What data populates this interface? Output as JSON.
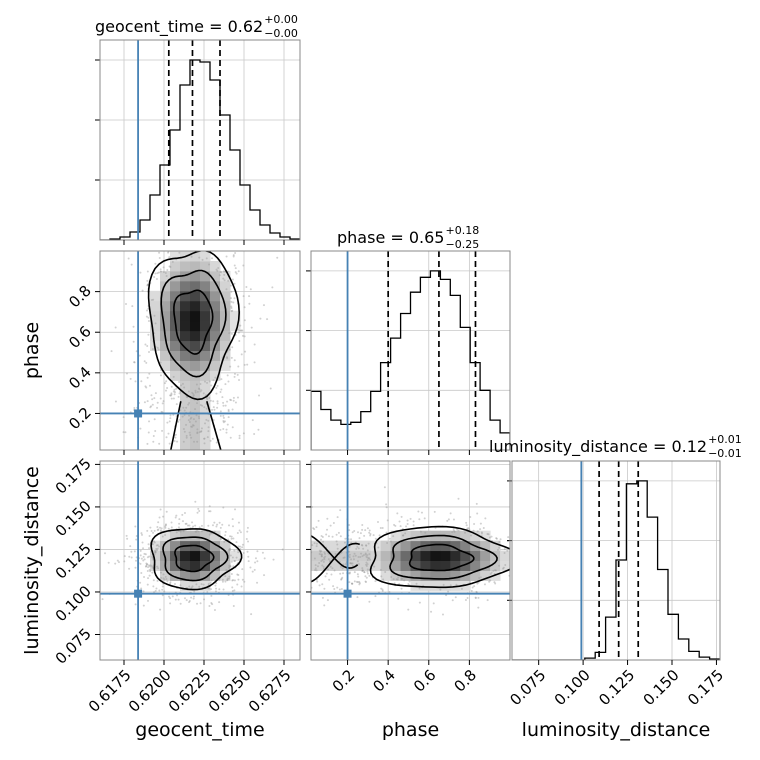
{
  "chart_data": {
    "type": "corner",
    "parameters": [
      "geocent_time",
      "phase",
      "luminosity_distance"
    ],
    "truths": [
      0.61838,
      0.2,
      0.099
    ],
    "truth_color": "#4682b4",
    "ranges": [
      [
        0.616,
        0.6285
      ],
      [
        0.02,
        1.0
      ],
      [
        0.06,
        0.177
      ]
    ],
    "ticks": [
      [
        0.6175,
        0.62,
        0.6225,
        0.625,
        0.6275
      ],
      [
        0.2,
        0.4,
        0.6,
        0.8
      ],
      [
        0.075,
        0.1,
        0.125,
        0.15,
        0.175
      ]
    ],
    "tick_labels": [
      [
        "0.6175",
        "0.6200",
        "0.6225",
        "0.6250",
        "0.6275"
      ],
      [
        "0.2",
        "0.4",
        "0.6",
        "0.8"
      ],
      [
        "0.075",
        "0.100",
        "0.125",
        "0.150",
        "0.175"
      ]
    ],
    "titles": [
      {
        "text": "geocent_time = 0.62",
        "sup": "+0.00",
        "sub": "−0.00"
      },
      {
        "text": "phase = 0.65",
        "sup": "+0.18",
        "sub": "−0.25"
      },
      {
        "text": "luminosity_distance = 0.12",
        "sup": "+0.01",
        "sub": "−0.01"
      }
    ],
    "quantiles": [
      [
        0.6203,
        0.62178,
        0.6235
      ],
      [
        0.4,
        0.65,
        0.83
      ],
      [
        0.109,
        0.12,
        0.131
      ]
    ],
    "histograms": [
      {
        "range": [
          0.616,
          0.6285
        ],
        "counts": [
          0,
          1,
          3,
          8,
          20,
          45,
          75,
          110,
          155,
          180,
          178,
          160,
          125,
          90,
          55,
          30,
          15,
          7,
          3,
          1
        ]
      },
      {
        "range": [
          0.02,
          1.0
        ],
        "counts": [
          55,
          38,
          28,
          24,
          26,
          36,
          55,
          82,
          105,
          128,
          148,
          162,
          168,
          160,
          145,
          115,
          82,
          56,
          28,
          16
        ]
      },
      {
        "range": [
          0.06,
          0.177
        ],
        "counts": [
          0,
          0,
          0,
          0,
          0,
          0,
          0,
          2,
          8,
          45,
          105,
          185,
          188,
          150,
          95,
          48,
          22,
          9,
          3,
          1
        ]
      }
    ],
    "posterior_2d": [
      {
        "x": 0,
        "y": 1,
        "mean": [
          0.6218,
          0.66
        ],
        "sd": [
          0.0013,
          0.17
        ],
        "tail": "low"
      },
      {
        "x": 0,
        "y": 2,
        "mean": [
          0.6218,
          0.12
        ],
        "sd": [
          0.0013,
          0.0085
        ]
      },
      {
        "x": 1,
        "y": 2,
        "mean": [
          0.65,
          0.12
        ],
        "sd": [
          0.17,
          0.0085
        ],
        "tail": "wrap"
      }
    ]
  }
}
